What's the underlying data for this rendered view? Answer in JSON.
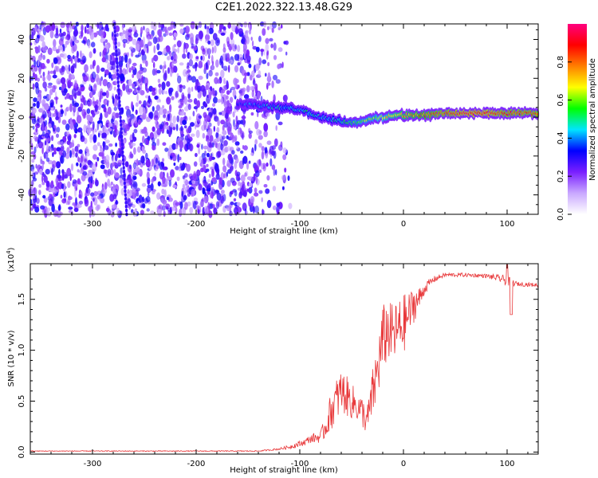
{
  "chart_data": [
    {
      "type": "heatmap",
      "title": "C2E1.2022.322.13.48.G29",
      "xlabel": "Height of straight line (km)",
      "ylabel": "Frequency (Hz)",
      "xlim": [
        -360,
        130
      ],
      "ylim": [
        -50,
        48
      ],
      "x_ticks": [
        -300,
        -200,
        -100,
        0,
        100
      ],
      "y_ticks": [
        -40,
        -20,
        0,
        20,
        40
      ],
      "colorbar": {
        "label": "Normalized spectral amplitude",
        "range": [
          0,
          1
        ],
        "ticks": [
          "0.0",
          "0.2",
          "0.4",
          "0.6",
          "0.8"
        ],
        "colors": [
          "#ffffff",
          "#c9a8ff",
          "#7a1fff",
          "#0000ff",
          "#00e5ff",
          "#00ff00",
          "#ffff00",
          "#ff7f00",
          "#ff0000",
          "#ff007f"
        ]
      },
      "ridge": {
        "x": [
          -160,
          -140,
          -120,
          -100,
          -90,
          -80,
          -70,
          -60,
          -50,
          -40,
          -30,
          -20,
          -10,
          0,
          20,
          40,
          60,
          80,
          100,
          130
        ],
        "y": [
          7,
          6,
          5,
          4,
          2,
          0,
          -1,
          -2,
          -3,
          -2,
          -1,
          0,
          1,
          1,
          1,
          2,
          2,
          2,
          2,
          2
        ],
        "amplitude": [
          0.35,
          0.4,
          0.45,
          0.45,
          0.5,
          0.45,
          0.45,
          0.5,
          0.55,
          0.6,
          0.6,
          0.65,
          0.7,
          0.75,
          0.8,
          0.85,
          0.9,
          0.9,
          0.85,
          0.85
        ]
      }
    },
    {
      "type": "line",
      "xlabel": "Height of straight line (km)",
      "ylabel": "SNR (10 * v/v)",
      "y_multiplier": "(x10",
      "y_multiplier_exp": "4",
      "xlim": [
        -360,
        130
      ],
      "ylim": [
        -0.02,
        1.85
      ],
      "x_ticks": [
        -300,
        -200,
        -100,
        0,
        100
      ],
      "y_ticks": [
        "0.0",
        "0.5",
        "1.0",
        "1.5"
      ],
      "color": "#e8383a",
      "series": [
        {
          "x": [
            -360,
            -300,
            -200,
            -140,
            -120,
            -110,
            -100,
            -95,
            -90,
            -85,
            -80,
            -75,
            -70,
            -65,
            -60,
            -55,
            -50,
            -45,
            -40,
            -35,
            -30,
            -25,
            -20,
            -15,
            -10,
            -5,
            0,
            5,
            10,
            15,
            20,
            25,
            30,
            40,
            60,
            80,
            95,
            100,
            110,
            130
          ],
          "y": [
            0.01,
            0.01,
            0.01,
            0.01,
            0.03,
            0.05,
            0.08,
            0.1,
            0.13,
            0.14,
            0.15,
            0.25,
            0.4,
            0.5,
            0.6,
            0.55,
            0.5,
            0.45,
            0.4,
            0.3,
            0.55,
            0.8,
            1.1,
            1.2,
            1.15,
            1.2,
            1.25,
            1.35,
            1.45,
            1.5,
            1.6,
            1.66,
            1.7,
            1.74,
            1.74,
            1.73,
            1.7,
            1.68,
            1.65,
            1.64
          ],
          "noise_amplitude": [
            0.004,
            0.004,
            0.004,
            0.005,
            0.01,
            0.02,
            0.03,
            0.03,
            0.04,
            0.05,
            0.06,
            0.12,
            0.18,
            0.22,
            0.22,
            0.2,
            0.18,
            0.15,
            0.15,
            0.15,
            0.25,
            0.3,
            0.35,
            0.3,
            0.3,
            0.3,
            0.3,
            0.22,
            0.18,
            0.12,
            0.06,
            0.04,
            0.03,
            0.02,
            0.02,
            0.02,
            0.04,
            0.05,
            0.02,
            0.02
          ]
        }
      ]
    }
  ]
}
